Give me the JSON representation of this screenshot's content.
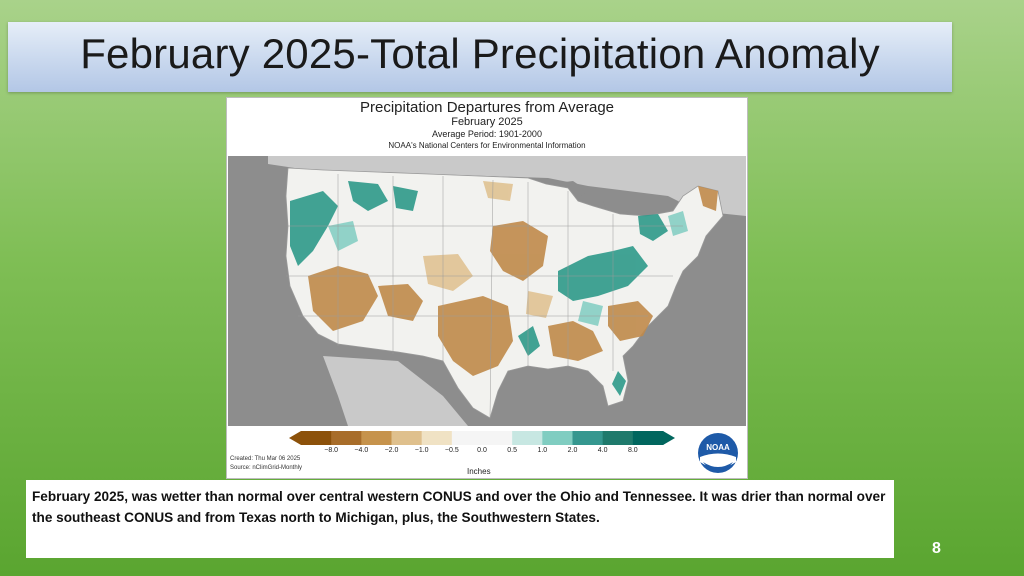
{
  "slide": {
    "title": "February 2025-Total Precipitation Anomaly",
    "caption": "February 2025, was wetter than normal over central western CONUS and over the Ohio and Tennessee.  It was drier than normal over the southeast CONUS and from Texas north to Michigan, plus, the Southwestern States.",
    "page_number": "8"
  },
  "map": {
    "title": "Precipitation Departures from Average",
    "period": "February 2025",
    "average_period": "Average Period: 1901-2000",
    "agency": "NOAA's National Centers for Environmental Information",
    "legend": {
      "ticks": [
        "−8.0",
        "−4.0",
        "−2.0",
        "−1.0",
        "−0.5",
        "0.0",
        "0.5",
        "1.0",
        "2.0",
        "4.0",
        "8.0"
      ],
      "values": [
        -8.0,
        -4.0,
        -2.0,
        -1.0,
        -0.5,
        0.0,
        0.5,
        1.0,
        2.0,
        4.0,
        8.0
      ],
      "colors": [
        "#8c510a",
        "#a86d2a",
        "#c6934c",
        "#dfc08d",
        "#f0e2c4",
        "#f5f5f5",
        "#f5f5f5",
        "#c7e7e2",
        "#80cdc1",
        "#35978f",
        "#1f7a6c",
        "#01665e"
      ],
      "unit": "Inches"
    },
    "created": "Created: Thu Mar 06 2025",
    "source": "Source: nClimGrid-Monthly",
    "logo_text": "NOAA"
  },
  "colors": {
    "wet": "#2e9a8a",
    "dry": "#c08a4a",
    "neutral": "#f2f2ef",
    "ocean": "#8d8d8d"
  }
}
